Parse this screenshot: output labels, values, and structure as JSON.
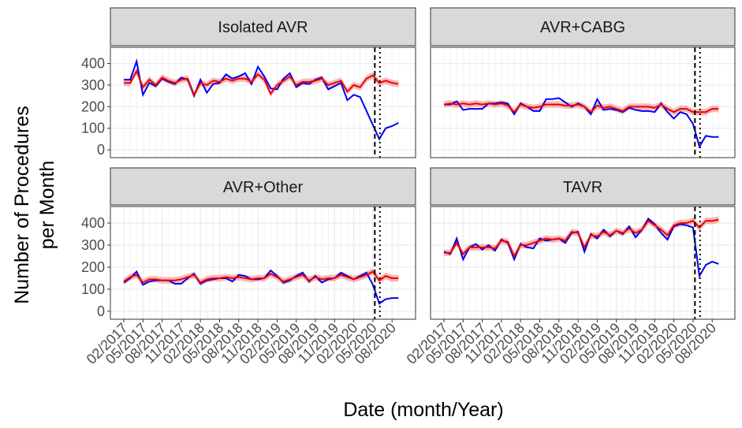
{
  "ylabel": [
    "Number of Procedures",
    "per Month"
  ],
  "xlabel": "Date (month/Year)",
  "chart_data": [
    {
      "type": "line",
      "title": "Isolated AVR",
      "categories": [
        null,
        null,
        null,
        null,
        null,
        null,
        null,
        null,
        null,
        null,
        null,
        null,
        null,
        null,
        null,
        null,
        null,
        null,
        null,
        null,
        null,
        null,
        null,
        null,
        null,
        null,
        null,
        null,
        null,
        null,
        null,
        null,
        null,
        null,
        null,
        null,
        null,
        null,
        null,
        null,
        null,
        null,
        null,
        null
      ],
      "series": [
        {
          "color": "#0000ee",
          "values": [
            325,
            325,
            410,
            255,
            310,
            295,
            330,
            315,
            305,
            335,
            325,
            250,
            325,
            265,
            305,
            310,
            350,
            330,
            340,
            355,
            305,
            385,
            340,
            285,
            280,
            330,
            355,
            290,
            310,
            305,
            325,
            335,
            280,
            295,
            310,
            230,
            255,
            245,
            180,
            115,
            50,
            100,
            110,
            125
          ]
        },
        {
          "color": "#ee0000",
          "ribbon": 15,
          "ribbon_color": "#f4a8a8",
          "values": [
            310,
            310,
            365,
            290,
            325,
            300,
            335,
            320,
            310,
            325,
            330,
            255,
            310,
            300,
            320,
            315,
            330,
            320,
            330,
            330,
            315,
            350,
            325,
            260,
            300,
            320,
            340,
            300,
            315,
            315,
            320,
            330,
            300,
            310,
            320,
            270,
            300,
            290,
            330,
            345,
            310,
            320,
            310,
            305
          ]
        }
      ],
      "ylim": [
        -36,
        475
      ],
      "yticks": [
        0,
        100,
        200,
        300,
        400
      ],
      "grid": true,
      "vlines": [
        {
          "at": 39.3,
          "style": "dashed"
        },
        {
          "at": 40.1,
          "style": "dotted"
        }
      ]
    },
    {
      "type": "line",
      "title": "AVR+CABG",
      "categories": [
        null,
        null,
        null,
        null,
        null,
        null,
        null,
        null,
        null,
        null,
        null,
        null,
        null,
        null,
        null,
        null,
        null,
        null,
        null,
        null,
        null,
        null,
        null,
        null,
        null,
        null,
        null,
        null,
        null,
        null,
        null,
        null,
        null,
        null,
        null,
        null,
        null,
        null,
        null,
        null,
        null,
        null,
        null,
        null
      ],
      "series": [
        {
          "color": "#0000ee",
          "values": [
            210,
            210,
            225,
            185,
            190,
            190,
            190,
            215,
            215,
            220,
            215,
            165,
            215,
            200,
            180,
            180,
            235,
            235,
            240,
            220,
            200,
            215,
            200,
            165,
            235,
            185,
            190,
            185,
            175,
            195,
            185,
            180,
            180,
            175,
            215,
            175,
            145,
            175,
            165,
            120,
            15,
            65,
            60,
            60
          ]
        },
        {
          "color": "#ee0000",
          "ribbon": 15,
          "ribbon_color": "#f4a8a8",
          "values": [
            210,
            215,
            210,
            215,
            210,
            215,
            210,
            215,
            210,
            215,
            205,
            175,
            210,
            200,
            195,
            200,
            210,
            210,
            210,
            205,
            205,
            210,
            200,
            175,
            205,
            195,
            200,
            190,
            180,
            200,
            200,
            200,
            200,
            195,
            210,
            190,
            175,
            190,
            190,
            175,
            175,
            175,
            190,
            190
          ]
        }
      ],
      "ylim": [
        -36,
        475
      ],
      "yticks": [
        0,
        100,
        200,
        300,
        400
      ],
      "grid": true,
      "vlines": [
        {
          "at": 39.3,
          "style": "dashed"
        },
        {
          "at": 40.1,
          "style": "dotted"
        }
      ]
    },
    {
      "type": "line",
      "title": "AVR+Other",
      "categories": [
        "02/2017",
        null,
        null,
        "05/2017",
        null,
        null,
        "08/2017",
        null,
        null,
        "11/2017",
        null,
        null,
        "02/2018",
        null,
        null,
        "05/2018",
        null,
        null,
        "08/2018",
        null,
        null,
        "11/2018",
        null,
        null,
        "02/2019",
        null,
        null,
        "05/2019",
        null,
        null,
        "08/2019",
        null,
        null,
        "11/2019",
        null,
        null,
        "02/2020",
        null,
        null,
        "05/2020",
        null,
        null,
        "08/2020",
        null
      ],
      "series": [
        {
          "color": "#0000ee",
          "values": [
            130,
            150,
            180,
            120,
            135,
            140,
            140,
            140,
            125,
            125,
            150,
            170,
            125,
            140,
            145,
            150,
            150,
            135,
            165,
            160,
            145,
            145,
            150,
            185,
            160,
            130,
            140,
            160,
            175,
            135,
            160,
            130,
            145,
            150,
            175,
            160,
            145,
            160,
            175,
            120,
            35,
            55,
            60,
            60
          ]
        },
        {
          "color": "#ee0000",
          "ribbon": 15,
          "ribbon_color": "#f4a8a8",
          "values": [
            135,
            155,
            165,
            130,
            145,
            145,
            140,
            140,
            140,
            145,
            155,
            165,
            130,
            145,
            150,
            150,
            155,
            150,
            155,
            150,
            145,
            150,
            150,
            170,
            155,
            135,
            145,
            155,
            165,
            140,
            155,
            145,
            150,
            150,
            165,
            155,
            145,
            155,
            165,
            180,
            140,
            160,
            150,
            150
          ]
        }
      ],
      "ylim": [
        -36,
        475
      ],
      "yticks": [
        0,
        100,
        200,
        300,
        400
      ],
      "grid": true,
      "vlines": [
        {
          "at": 39.3,
          "style": "dashed"
        },
        {
          "at": 40.1,
          "style": "dotted"
        }
      ]
    },
    {
      "type": "line",
      "title": "TAVR",
      "categories": [
        "02/2017",
        null,
        null,
        "05/2017",
        null,
        null,
        "08/2017",
        null,
        null,
        "11/2017",
        null,
        null,
        "02/2018",
        null,
        null,
        "05/2018",
        null,
        null,
        "08/2018",
        null,
        null,
        "11/2018",
        null,
        null,
        "02/2019",
        null,
        null,
        "05/2019",
        null,
        null,
        "08/2019",
        null,
        null,
        "11/2019",
        null,
        null,
        "02/2020",
        null,
        null,
        "05/2020",
        null,
        null,
        "08/2020",
        null
      ],
      "series": [
        {
          "color": "#0000ee",
          "values": [
            270,
            260,
            330,
            235,
            290,
            305,
            280,
            300,
            275,
            325,
            310,
            235,
            305,
            290,
            285,
            330,
            320,
            325,
            330,
            310,
            355,
            360,
            270,
            350,
            330,
            370,
            340,
            365,
            350,
            385,
            335,
            370,
            420,
            395,
            355,
            325,
            385,
            395,
            390,
            380,
            160,
            210,
            225,
            215
          ]
        },
        {
          "color": "#ee0000",
          "ribbon": 15,
          "ribbon_color": "#f4a8a8",
          "values": [
            265,
            265,
            310,
            260,
            290,
            290,
            290,
            290,
            285,
            320,
            315,
            250,
            300,
            300,
            310,
            320,
            330,
            325,
            330,
            320,
            360,
            355,
            290,
            345,
            340,
            360,
            345,
            365,
            355,
            375,
            355,
            370,
            410,
            390,
            370,
            345,
            390,
            400,
            400,
            410,
            380,
            410,
            410,
            415
          ]
        }
      ],
      "ylim": [
        -36,
        475
      ],
      "yticks": [
        0,
        100,
        200,
        300,
        400
      ],
      "grid": true,
      "vlines": [
        {
          "at": 39.3,
          "style": "dashed"
        },
        {
          "at": 40.1,
          "style": "dotted"
        }
      ]
    }
  ]
}
